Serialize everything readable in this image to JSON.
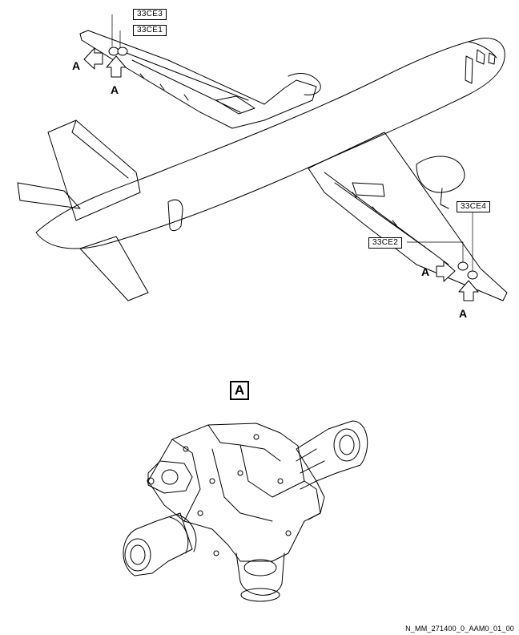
{
  "callouts": {
    "c1": "33CE3",
    "c2": "33CE1",
    "c3": "33CE4",
    "c4": "33CE2"
  },
  "arrows": {
    "a1": "A",
    "a2": "A",
    "a3": "A",
    "a4": "A"
  },
  "detail_view": {
    "label": "A"
  },
  "drawing_ref": "N_MM_271400_0_AAM0_01_00"
}
